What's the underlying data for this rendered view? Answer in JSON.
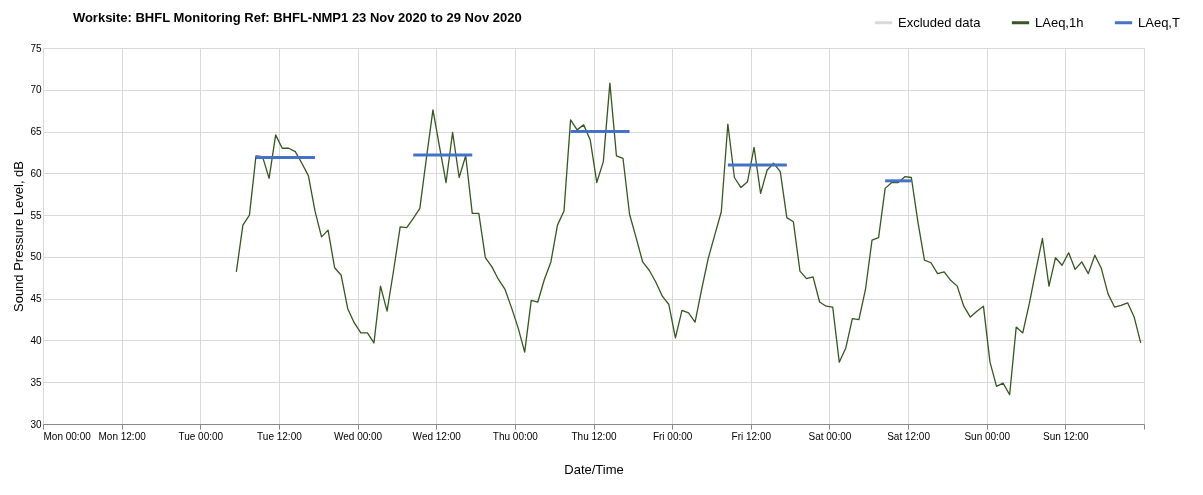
{
  "chart_data": {
    "type": "line",
    "title": "Worksite: BHFL   Monitoring Ref: BHFL-NMP1     23 Nov 2020 to 29 Nov 2020",
    "xlabel": "Date/Time",
    "ylabel": "Sound Pressure Level, dB",
    "xlim": [
      "2020-11-23T00:00",
      "2020-11-30T00:00"
    ],
    "xticks": [
      {
        "value": "2020-11-23T00:00",
        "label": "Mon 00:00"
      },
      {
        "value": "2020-11-23T12:00",
        "label": "Mon 12:00"
      },
      {
        "value": "2020-11-24T00:00",
        "label": "Tue 00:00"
      },
      {
        "value": "2020-11-24T12:00",
        "label": "Tue 12:00"
      },
      {
        "value": "2020-11-25T00:00",
        "label": "Wed 00:00"
      },
      {
        "value": "2020-11-25T12:00",
        "label": "Wed 12:00"
      },
      {
        "value": "2020-11-26T00:00",
        "label": "Thu 00:00"
      },
      {
        "value": "2020-11-26T12:00",
        "label": "Thu 12:00"
      },
      {
        "value": "2020-11-27T00:00",
        "label": "Fri 00:00"
      },
      {
        "value": "2020-11-27T12:00",
        "label": "Fri 12:00"
      },
      {
        "value": "2020-11-28T00:00",
        "label": "Sat 00:00"
      },
      {
        "value": "2020-11-28T12:00",
        "label": "Sat 12:00"
      },
      {
        "value": "2020-11-29T00:00",
        "label": "Sun 00:00"
      },
      {
        "value": "2020-11-29T12:00",
        "label": "Sun 12:00"
      },
      {
        "value": "2020-11-30T00:00",
        "label": null
      }
    ],
    "ylim": [
      30,
      75
    ],
    "yticks": [
      30,
      35,
      40,
      45,
      50,
      55,
      60,
      65,
      70,
      75
    ],
    "grid": true,
    "legend": "top right",
    "series": [
      {
        "name": "Excluded data",
        "type": "area",
        "color": "#d9d9d9"
      },
      {
        "name": "LAeq,1h",
        "color": "#375623",
        "x": [
          "2020-11-24T05:30",
          "2020-11-24T06:30",
          "2020-11-24T07:30",
          "2020-11-24T08:30",
          "2020-11-24T09:30",
          "2020-11-24T10:30",
          "2020-11-24T11:30",
          "2020-11-24T12:30",
          "2020-11-24T13:30",
          "2020-11-24T14:30",
          "2020-11-24T15:30",
          "2020-11-24T16:30",
          "2020-11-24T17:30",
          "2020-11-24T18:30",
          "2020-11-24T19:30",
          "2020-11-24T20:30",
          "2020-11-24T21:30",
          "2020-11-24T22:30",
          "2020-11-24T23:30",
          "2020-11-25T00:30",
          "2020-11-25T01:30",
          "2020-11-25T02:30",
          "2020-11-25T03:30",
          "2020-11-25T04:30",
          "2020-11-25T05:30",
          "2020-11-25T06:30",
          "2020-11-25T07:30",
          "2020-11-25T08:30",
          "2020-11-25T09:30",
          "2020-11-25T10:30",
          "2020-11-25T11:30",
          "2020-11-25T12:30",
          "2020-11-25T13:30",
          "2020-11-25T14:30",
          "2020-11-25T15:30",
          "2020-11-25T16:30",
          "2020-11-25T17:30",
          "2020-11-25T18:30",
          "2020-11-25T19:30",
          "2020-11-25T20:30",
          "2020-11-25T21:30",
          "2020-11-25T22:30",
          "2020-11-25T23:30",
          "2020-11-26T00:30",
          "2020-11-26T01:30",
          "2020-11-26T02:30",
          "2020-11-26T03:30",
          "2020-11-26T04:30",
          "2020-11-26T05:30",
          "2020-11-26T06:30",
          "2020-11-26T07:30",
          "2020-11-26T08:30",
          "2020-11-26T09:30",
          "2020-11-26T10:30",
          "2020-11-26T11:30",
          "2020-11-26T12:30",
          "2020-11-26T13:30",
          "2020-11-26T14:30",
          "2020-11-26T15:30",
          "2020-11-26T16:30",
          "2020-11-26T17:30",
          "2020-11-26T18:30",
          "2020-11-26T19:30",
          "2020-11-26T20:30",
          "2020-11-26T21:30",
          "2020-11-26T22:30",
          "2020-11-26T23:30",
          "2020-11-27T00:30",
          "2020-11-27T01:30",
          "2020-11-27T02:30",
          "2020-11-27T03:30",
          "2020-11-27T04:30",
          "2020-11-27T05:30",
          "2020-11-27T06:30",
          "2020-11-27T07:30",
          "2020-11-27T08:30",
          "2020-11-27T09:30",
          "2020-11-27T10:30",
          "2020-11-27T11:30",
          "2020-11-27T12:30",
          "2020-11-27T13:30",
          "2020-11-27T14:30",
          "2020-11-27T15:30",
          "2020-11-27T16:30",
          "2020-11-27T17:30",
          "2020-11-27T18:30",
          "2020-11-27T19:30",
          "2020-11-27T20:30",
          "2020-11-27T21:30",
          "2020-11-27T22:30",
          "2020-11-27T23:30",
          "2020-11-28T00:30",
          "2020-11-28T01:30",
          "2020-11-28T02:30",
          "2020-11-28T03:30",
          "2020-11-28T04:30",
          "2020-11-28T05:30",
          "2020-11-28T06:30",
          "2020-11-28T07:30",
          "2020-11-28T08:30",
          "2020-11-28T09:30",
          "2020-11-28T10:30",
          "2020-11-28T11:30",
          "2020-11-28T12:30",
          "2020-11-28T13:30",
          "2020-11-28T14:30",
          "2020-11-28T15:30",
          "2020-11-28T16:30",
          "2020-11-28T17:30",
          "2020-11-28T18:30",
          "2020-11-28T19:30",
          "2020-11-28T20:30",
          "2020-11-28T21:30",
          "2020-11-28T22:30",
          "2020-11-28T23:30",
          "2020-11-29T00:30",
          "2020-11-29T01:30",
          "2020-11-29T02:30",
          "2020-11-29T03:30",
          "2020-11-29T04:30",
          "2020-11-29T05:30",
          "2020-11-29T06:30",
          "2020-11-29T07:30",
          "2020-11-29T08:30",
          "2020-11-29T09:30",
          "2020-11-29T10:30",
          "2020-11-29T11:30",
          "2020-11-29T12:30",
          "2020-11-29T13:30",
          "2020-11-29T14:30",
          "2020-11-29T15:30",
          "2020-11-29T16:30",
          "2020-11-29T17:30",
          "2020-11-29T18:30",
          "2020-11-29T19:30",
          "2020-11-29T20:30",
          "2020-11-29T21:30",
          "2020-11-29T22:30",
          "2020-11-29T23:30"
        ],
        "values": [
          48.2,
          53.8,
          55.0,
          62.1,
          62.0,
          59.4,
          64.6,
          63.0,
          63.0,
          62.6,
          61.2,
          59.7,
          55.5,
          52.4,
          53.2,
          48.7,
          47.8,
          43.8,
          42.1,
          40.9,
          40.9,
          39.7,
          46.5,
          43.5,
          48.4,
          53.6,
          53.5,
          54.6,
          55.8,
          61.8,
          67.6,
          63.2,
          58.9,
          64.9,
          59.5,
          62.1,
          55.2,
          55.2,
          49.9,
          48.8,
          47.3,
          46.1,
          43.9,
          41.5,
          38.6,
          44.8,
          44.6,
          47.3,
          49.4,
          53.8,
          55.5,
          66.4,
          65.2,
          65.8,
          64.0,
          58.9,
          61.4,
          70.8,
          62.1,
          61.8,
          55.1,
          52.3,
          49.4,
          48.4,
          47.0,
          45.3,
          44.3,
          40.3,
          43.6,
          43.3,
          42.2,
          46.1,
          49.8,
          52.6,
          55.4,
          65.9,
          59.5,
          58.3,
          59.0,
          63.1,
          57.6,
          60.4,
          61.2,
          60.2,
          54.7,
          54.2,
          48.3,
          47.4,
          47.6,
          44.6,
          44.1,
          44.0,
          37.4,
          39.1,
          42.6,
          42.5,
          46.1,
          52.0,
          52.3,
          58.2,
          58.9,
          58.9,
          59.6,
          59.5,
          54.2,
          49.6,
          49.3,
          48.0,
          48.2,
          47.2,
          46.5,
          44.1,
          42.8,
          43.5,
          44.1,
          37.4,
          34.5,
          34.9,
          33.5,
          41.6,
          40.9,
          44.4,
          48.4,
          52.2,
          46.5,
          49.9,
          49.0,
          50.5,
          48.5,
          49.4,
          48.0,
          50.2,
          48.6,
          45.6,
          44.0,
          44.2,
          44.5,
          42.8,
          39.7
        ]
      },
      {
        "name": "LAeq,T",
        "color": "#4472c4",
        "x": [
          "2020-11-24T08:30",
          "2020-11-24T17:30",
          "2020-11-24T17:40",
          "2020-11-25T08:30",
          "2020-11-25T17:30",
          "2020-11-25T17:40",
          "2020-11-26T08:30",
          "2020-11-26T17:30",
          "2020-11-26T17:40",
          "2020-11-27T08:30",
          "2020-11-27T17:30",
          "2020-11-27T17:40",
          "2020-11-28T08:30",
          "2020-11-28T12:30"
        ],
        "values": [
          61.9,
          61.9,
          null,
          62.2,
          62.2,
          null,
          65.0,
          65.0,
          null,
          61.0,
          61.0,
          null,
          59.1,
          59.1
        ]
      }
    ]
  }
}
